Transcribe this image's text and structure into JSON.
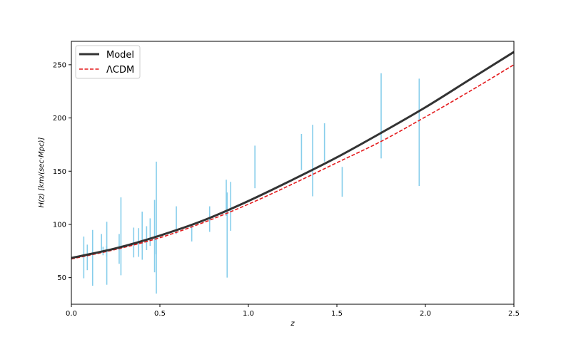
{
  "chart_data": {
    "type": "line",
    "title": "",
    "xlabel": "z",
    "ylabel": "H(z)  [km/(sec·Mpc)]",
    "xlim": [
      0,
      2.5
    ],
    "ylim": [
      25,
      272
    ],
    "grid": false,
    "legend_position": "top-left",
    "x_ticks": [
      "0.0",
      "0.5",
      "1.0",
      "1.5",
      "2.0",
      "2.5"
    ],
    "y_ticks": [
      "50",
      "100",
      "150",
      "200",
      "250"
    ],
    "series": [
      {
        "name": "Model",
        "style": "solid",
        "color": "#333333",
        "x": [
          0,
          0.25,
          0.5,
          0.75,
          1.0,
          1.25,
          1.5,
          1.75,
          2.0,
          2.25,
          2.5
        ],
        "y": [
          68.5,
          77.5,
          89.5,
          104,
          122,
          142,
          163,
          186,
          210,
          236,
          262
        ]
      },
      {
        "name": "ΛCDM",
        "style": "dashed",
        "color": "#e41a1c",
        "x": [
          0,
          0.25,
          0.5,
          0.75,
          1.0,
          1.25,
          1.5,
          1.75,
          2.0,
          2.25,
          2.5
        ],
        "y": [
          67.5,
          76.5,
          87.5,
          102,
          119,
          138,
          158,
          178,
          201,
          225,
          250
        ]
      }
    ],
    "data_points": {
      "color": "#87ceeb",
      "points": [
        {
          "x": 0.07,
          "y": 69,
          "err": 19.6
        },
        {
          "x": 0.09,
          "y": 69,
          "err": 12
        },
        {
          "x": 0.12,
          "y": 68.6,
          "err": 26.2
        },
        {
          "x": 0.17,
          "y": 83,
          "err": 8
        },
        {
          "x": 0.179,
          "y": 75,
          "err": 4
        },
        {
          "x": 0.199,
          "y": 75,
          "err": 5
        },
        {
          "x": 0.2,
          "y": 72.9,
          "err": 29.6
        },
        {
          "x": 0.27,
          "y": 77,
          "err": 14
        },
        {
          "x": 0.28,
          "y": 88.8,
          "err": 36.6
        },
        {
          "x": 0.352,
          "y": 83,
          "err": 14
        },
        {
          "x": 0.38,
          "y": 83,
          "err": 13.5
        },
        {
          "x": 0.4,
          "y": 95,
          "err": 17
        },
        {
          "x": 0.4004,
          "y": 77,
          "err": 10.2
        },
        {
          "x": 0.425,
          "y": 87.1,
          "err": 11.2
        },
        {
          "x": 0.445,
          "y": 92.8,
          "err": 12.9
        },
        {
          "x": 0.47,
          "y": 89,
          "err": 34
        },
        {
          "x": 0.4783,
          "y": 80.9,
          "err": 9
        },
        {
          "x": 0.48,
          "y": 97,
          "err": 62
        },
        {
          "x": 0.593,
          "y": 104,
          "err": 13
        },
        {
          "x": 0.68,
          "y": 92,
          "err": 8
        },
        {
          "x": 0.781,
          "y": 105,
          "err": 12
        },
        {
          "x": 0.875,
          "y": 125,
          "err": 17
        },
        {
          "x": 0.88,
          "y": 90,
          "err": 40
        },
        {
          "x": 0.9,
          "y": 117,
          "err": 23
        },
        {
          "x": 1.037,
          "y": 154,
          "err": 20
        },
        {
          "x": 1.3,
          "y": 168,
          "err": 17
        },
        {
          "x": 1.363,
          "y": 160,
          "err": 33.6
        },
        {
          "x": 1.43,
          "y": 177,
          "err": 18
        },
        {
          "x": 1.53,
          "y": 140,
          "err": 14
        },
        {
          "x": 1.75,
          "y": 202,
          "err": 40
        },
        {
          "x": 1.965,
          "y": 186.5,
          "err": 50.4
        }
      ]
    }
  }
}
